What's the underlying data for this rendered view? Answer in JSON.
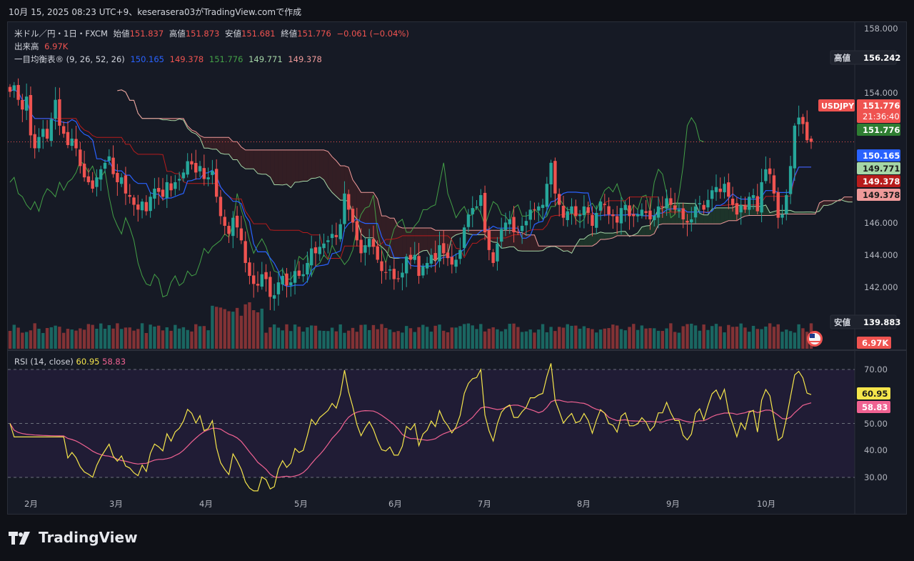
{
  "header": {
    "text": "10月 15, 2025 08:23 UTC+9、keserasera03がTradingView.comで作成"
  },
  "legend": {
    "symbol": "米ドル／円・1日・FXCM",
    "open_label": "始値",
    "open": "151.837",
    "high_label": "高値",
    "high": "151.873",
    "low_label": "安値",
    "low": "151.681",
    "close_label": "終値",
    "close": "151.776",
    "change": "−0.061 (−0.04%)",
    "volume_label": "出来高",
    "volume": "6.97K",
    "ichimoku_label": "一目均衡表® (9, 26, 52, 26)",
    "ichimoku_values": [
      "150.165",
      "149.378",
      "151.776",
      "149.771",
      "149.378"
    ]
  },
  "rsi_legend": {
    "label": "RSI (14, close)",
    "rsi": "60.95",
    "ma": "58.83"
  },
  "price_axis": [
    "158.000",
    "154.000",
    "146.000",
    "144.000",
    "142.000"
  ],
  "rsi_axis": [
    "70.00",
    "50.00",
    "40.00",
    "30.00"
  ],
  "time_axis": [
    "2月",
    "3月",
    "4月",
    "5月",
    "6月",
    "7月",
    "8月",
    "9月",
    "10月"
  ],
  "tags": {
    "high_label": "高値",
    "high_value": "156.242",
    "low_label": "安値",
    "low_value": "139.883",
    "symbol_tag": "USDJPY",
    "last_price": "151.776",
    "countdown": "21:36:40",
    "chikou": "151.776",
    "tenkan": "150.165",
    "senkou_a": "149.771",
    "kijun": "149.378",
    "senkou_b": "149.378",
    "volume": "6.97K",
    "rsi": "60.95",
    "rsi_ma": "58.83"
  },
  "logo": {
    "text": "TradingView"
  },
  "colors": {
    "up": "#26a69a",
    "down": "#ef5350",
    "tenkan": "#2962ff",
    "kijun": "#b71c1c",
    "chikou": "#43a047",
    "span_a": "#a5d6a7",
    "span_b": "#ef9a9a",
    "rsi": "#f5e54b",
    "rsi_ma": "#f06292"
  },
  "chart_data": {
    "type": "candlestick",
    "instrument": "USDJPY",
    "interval": "1D",
    "price_range": [
      138.9,
      158.9
    ],
    "rsi_range": [
      25,
      75
    ],
    "rsi_levels": [
      70,
      50,
      30
    ],
    "months": [
      "2月",
      "3月",
      "4月",
      "5月",
      "6月",
      "7月",
      "8月",
      "9月",
      "10月"
    ],
    "close": [
      154.9,
      155.3,
      154.4,
      153.8,
      154.6,
      152.2,
      151.4,
      152.1,
      152.6,
      152.0,
      153.2,
      154.4,
      152.8,
      152.3,
      151.6,
      152.0,
      151.4,
      150.3,
      149.6,
      149.3,
      148.9,
      149.6,
      150.1,
      150.5,
      150.9,
      149.8,
      149.3,
      149.6,
      148.6,
      148.4,
      147.9,
      147.6,
      148.1,
      147.5,
      148.4,
      148.9,
      148.7,
      148.4,
      149.3,
      148.8,
      149.3,
      149.5,
      149.9,
      150.6,
      150.4,
      149.9,
      150.3,
      149.5,
      149.6,
      150.0,
      148.4,
      147.2,
      146.6,
      146.1,
      147.1,
      146.5,
      145.7,
      144.3,
      143.5,
      143.0,
      142.9,
      143.6,
      143.3,
      142.2,
      142.3,
      143.1,
      143.5,
      142.9,
      143.1,
      143.8,
      143.5,
      143.6,
      144.3,
      145.2,
      144.9,
      145.3,
      145.5,
      145.7,
      146.1,
      145.9,
      146.7,
      148.6,
      147.6,
      146.8,
      145.7,
      144.9,
      145.4,
      145.8,
      145.3,
      144.5,
      143.8,
      143.7,
      143.9,
      143.3,
      143.3,
      143.7,
      144.7,
      144.5,
      144.8,
      143.5,
      144.1,
      144.3,
      144.8,
      144.5,
      145.4,
      144.9,
      144.6,
      144.2,
      144.5,
      145.1,
      146.5,
      147.3,
      147.7,
      147.8,
      148.5,
      146.2,
      145.1,
      144.3,
      145.5,
      146.4,
      146.8,
      147.0,
      146.2,
      146.2,
      146.6,
      146.9,
      147.6,
      147.6,
      147.8,
      147.9,
      149.2,
      150.5,
      148.6,
      147.9,
      147.1,
      147.5,
      147.8,
      147.2,
      147.3,
      147.8,
      147.4,
      146.6,
      147.4,
      148.1,
      147.9,
      147.3,
      147.2,
      146.8,
      147.7,
      147.9,
      147.2,
      147.2,
      147.3,
      147.6,
      147.4,
      147.0,
      147.2,
      147.8,
      147.8,
      148.3,
      147.9,
      147.6,
      147.6,
      147.0,
      146.8,
      147.0,
      147.8,
      148.0,
      147.6,
      148.2,
      148.8,
      149.0,
      148.7,
      149.2,
      148.4,
      147.9,
      147.3,
      147.9,
      147.6,
      148.4,
      148.5,
      147.5,
      149.3,
      150.1,
      149.8,
      148.6,
      147.1,
      147.3,
      148.5,
      150.3,
      152.8,
      153.3,
      152.9,
      151.9,
      151.8
    ]
  }
}
